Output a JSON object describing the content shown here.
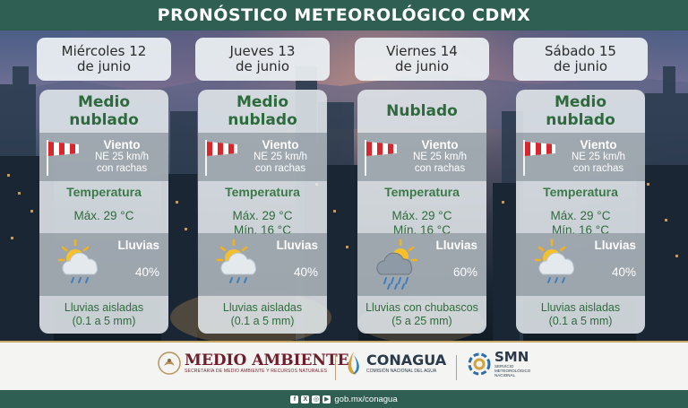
{
  "title": "PRONÓSTICO METEOROLÓGICO CDMX",
  "days": [
    {
      "date_line1": "Miércoles 12",
      "date_line2": "de junio",
      "sky_line1": "Medio",
      "sky_line2": "nublado",
      "wind_title": "Viento",
      "wind_line1": "NE 25 km/h",
      "wind_line2": "con rachas",
      "temp_title": "Temperatura",
      "temp_max": "Máx. 29 °C",
      "temp_min": "",
      "rain_title": "Lluvias",
      "rain_pct": "40%",
      "rain_icon": "sun-cloud-rain-icon",
      "desc_line1": "Lluvias aisladas",
      "desc_line2": "(0.1 a 5 mm)"
    },
    {
      "date_line1": "Jueves 13",
      "date_line2": "de junio",
      "sky_line1": "Medio",
      "sky_line2": "nublado",
      "wind_title": "Viento",
      "wind_line1": "NE 25 km/h",
      "wind_line2": "con rachas",
      "temp_title": "Temperatura",
      "temp_max": "Máx. 29 °C",
      "temp_min": "Mín. 16 °C",
      "rain_title": "Lluvias",
      "rain_pct": "40%",
      "rain_icon": "sun-cloud-rain-icon",
      "desc_line1": "Lluvias aisladas",
      "desc_line2": "(0.1 a 5 mm)"
    },
    {
      "date_line1": "Viernes 14",
      "date_line2": "de junio",
      "sky_line1": "Nublado",
      "sky_line2": "",
      "wind_title": "Viento",
      "wind_line1": "NE 25 km/h",
      "wind_line2": "con rachas",
      "temp_title": "Temperatura",
      "temp_max": "Máx. 29 °C",
      "temp_min": "Mín. 16 °C",
      "rain_title": "Lluvias",
      "rain_pct": "60%",
      "rain_icon": "sun-storm-cloud-icon",
      "desc_line1": "Lluvias con chubascos",
      "desc_line2": "(5 a 25 mm)"
    },
    {
      "date_line1": "Sábado 15",
      "date_line2": "de junio",
      "sky_line1": "Medio",
      "sky_line2": "nublado",
      "wind_title": "Viento",
      "wind_line1": "NE 25 km/h",
      "wind_line2": "con rachas",
      "temp_title": "Temperatura",
      "temp_max": "Máx. 29 °C",
      "temp_min": "Mín. 16 °C",
      "rain_title": "Lluvias",
      "rain_pct": "40%",
      "rain_icon": "sun-cloud-rain-icon",
      "desc_line1": "Lluvias aisladas",
      "desc_line2": "(0.1 a 5 mm)"
    }
  ],
  "footer": {
    "medio_ambiente": "MEDIO AMBIENTE",
    "medio_ambiente_sub": "SECRETARÍA DE MEDIO AMBIENTE Y RECURSOS NATURALES",
    "conagua": "CONAGUA",
    "conagua_sub": "COMISIÓN NACIONAL DEL AGUA",
    "smn": "SMN",
    "smn_sub": "SERVICIO METEOROLÓGICO NACIONAL",
    "url": "gob.mx/conagua"
  },
  "colors": {
    "header_green": "#2f5e52",
    "text_green": "#2e6b3c",
    "flag_red": "#d8262c",
    "brand_maroon": "#6f1d2c"
  }
}
